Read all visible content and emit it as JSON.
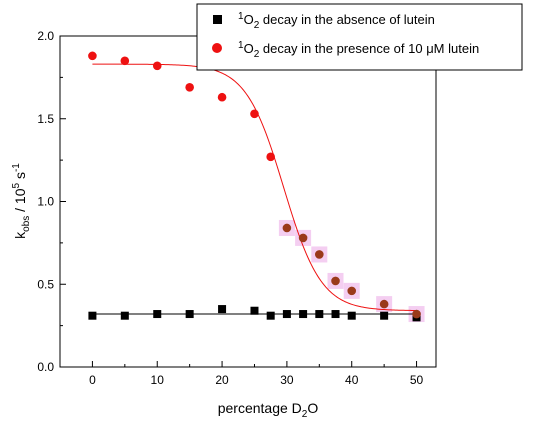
{
  "chart_data": {
    "type": "scatter",
    "xlabel": {
      "main": "percentage D",
      "sub": "2",
      "tail": "O"
    },
    "ylabel": {
      "main": "k",
      "sub": "obs",
      "mid": " / 10",
      "sup": "5",
      "tail": " s",
      "sup2": "-1"
    },
    "xlim": [
      -5,
      53
    ],
    "ylim": [
      0,
      2.0
    ],
    "xticks": [
      0,
      10,
      20,
      30,
      40,
      50
    ],
    "xtick_labels": [
      "0",
      "10",
      "20",
      "30",
      "40",
      "50"
    ],
    "yticks": [
      0,
      0.5,
      1.0,
      1.5,
      2.0
    ],
    "ytick_labels": [
      "0.0",
      "0.5",
      "1.0",
      "1.5",
      "2.0"
    ],
    "grid": false,
    "legend_placement": "top-right",
    "series": [
      {
        "name": {
          "pre": "",
          "sup": "1",
          "main": "O",
          "sub": "2",
          "post": " decay in the absence of lutein"
        },
        "marker": "square",
        "color": "#000000",
        "x": [
          0,
          5,
          10,
          15,
          20,
          25,
          27.5,
          30,
          32.5,
          35,
          37.5,
          40,
          45,
          50
        ],
        "y": [
          0.31,
          0.31,
          0.32,
          0.32,
          0.35,
          0.34,
          0.31,
          0.32,
          0.32,
          0.32,
          0.32,
          0.31,
          0.31,
          0.3
        ]
      },
      {
        "name": {
          "pre": "",
          "sup": "1",
          "main": "O",
          "sub": "2",
          "post": " decay in the presence of 10 μM lutein"
        },
        "marker": "circle",
        "color": "#ee1111",
        "x": [
          0,
          5,
          10,
          15,
          20,
          25,
          27.5,
          30,
          32.5,
          35,
          37.5,
          40,
          45,
          50
        ],
        "y": [
          1.88,
          1.85,
          1.82,
          1.69,
          1.63,
          1.53,
          1.27,
          0.84,
          0.78,
          0.68,
          0.52,
          0.46,
          0.38,
          0.32
        ]
      }
    ],
    "fits": [
      {
        "series": 0,
        "color": "#000000",
        "kind": "flat",
        "value": 0.32
      },
      {
        "series": 1,
        "color": "#ee1111",
        "kind": "sigmoid",
        "top": 1.83,
        "bottom": 0.34,
        "x0": 29.5,
        "dx": 2.9
      }
    ],
    "highlight_color": "#f2c6ef"
  }
}
